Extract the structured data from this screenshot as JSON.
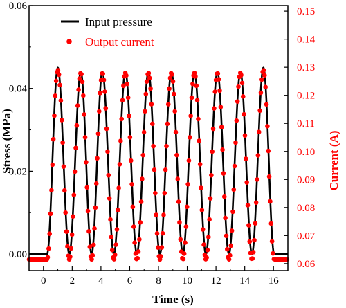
{
  "chart_data": {
    "type": "line",
    "xlabel": "Time (s)",
    "ylabel_left": "Stress (MPa)",
    "ylabel_right": "Current (A)",
    "xlim": [
      -1,
      17
    ],
    "ylim_left": [
      -0.004,
      0.06
    ],
    "ylim_right": [
      0.0575,
      0.152
    ],
    "x_ticks": [
      0,
      2,
      4,
      6,
      8,
      10,
      12,
      14,
      16
    ],
    "y_left_ticks": [
      0.0,
      0.02,
      0.04,
      0.06
    ],
    "y_left_tick_labels": [
      "0.00",
      "0.02",
      "0.04",
      "0.06"
    ],
    "y_right_ticks": [
      0.06,
      0.07,
      0.08,
      0.09,
      0.1,
      0.11,
      0.12,
      0.13,
      0.14,
      0.15
    ],
    "y_right_tick_labels": [
      "0.06",
      "0.07",
      "0.08",
      "0.09",
      "0.10",
      "0.11",
      "0.12",
      "0.13",
      "0.14",
      "0.15"
    ],
    "pulse_peak_times_s": [
      1.0,
      2.6,
      4.1,
      5.7,
      7.3,
      8.9,
      10.5,
      12.1,
      13.7,
      15.3
    ],
    "pulse_peak_stress_MPa": [
      0.045,
      0.044,
      0.044,
      0.044,
      0.044,
      0.044,
      0.044,
      0.044,
      0.044,
      0.045
    ],
    "pulse_peak_current_A": [
      0.129,
      0.128,
      0.128,
      0.128,
      0.128,
      0.128,
      0.128,
      0.128,
      0.128,
      0.129
    ],
    "baseline_stress_MPa": 0.0,
    "baseline_current_A": 0.0615,
    "pulse_start_s": 0.25,
    "pulse_end_s": 16.05,
    "series": [
      {
        "name": "Input pressure",
        "axis": "left",
        "style": "line",
        "color": "#000000"
      },
      {
        "name": "Output current",
        "axis": "right",
        "style": "markers",
        "color": "#ff0000"
      }
    ],
    "legend_position": "top-left",
    "grid": false
  }
}
